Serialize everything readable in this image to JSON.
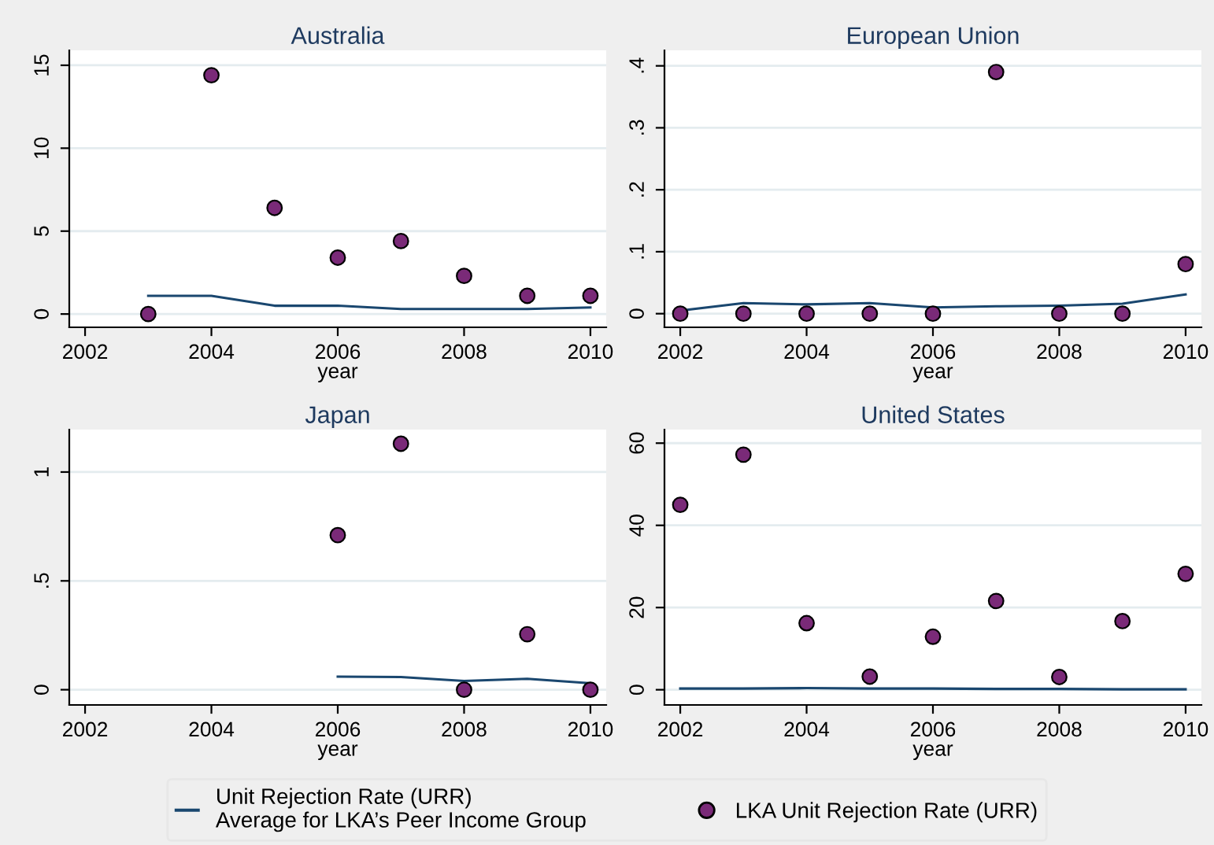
{
  "chart_data": [
    {
      "type": "line",
      "title": "Australia",
      "xlabel": "year",
      "xlim": [
        2001.75,
        2010.25
      ],
      "xticks": [
        2002,
        2004,
        2006,
        2008,
        2010
      ],
      "ylim": [
        -0.8,
        15.9
      ],
      "yticks": [
        0,
        5,
        10,
        15
      ],
      "grid": "y",
      "legend": "bottom",
      "series": [
        {
          "name": "Unit Rejection Rate (URR)\nAverage for LKA’s Peer Income Group",
          "color": "#1a476f",
          "x": [
            2003,
            2004,
            2005,
            2006,
            2007,
            2008,
            2009,
            2010
          ],
          "values": [
            1.1,
            1.1,
            0.5,
            0.5,
            0.3,
            0.3,
            0.3,
            0.4
          ]
        },
        {
          "name": "LKA Unit Rejection Rate (URR)",
          "type": "scatter",
          "color": "#7a2a78",
          "marker": "circle",
          "x": [
            2003,
            2004,
            2005,
            2006,
            2007,
            2008,
            2009,
            2010
          ],
          "values": [
            0,
            14.4,
            6.4,
            3.4,
            4.4,
            2.3,
            1.1,
            1.1
          ]
        }
      ]
    },
    {
      "type": "line",
      "title": "European Union",
      "xlabel": "year",
      "xlim": [
        2001.75,
        2010.25
      ],
      "xticks": [
        2002,
        2004,
        2006,
        2008,
        2010
      ],
      "ylim": [
        -0.022,
        0.425
      ],
      "yticks": [
        {
          "value": 0,
          "label": "0"
        },
        {
          "value": 0.1,
          "label": ".1"
        },
        {
          "value": 0.2,
          "label": ".2"
        },
        {
          "value": 0.3,
          "label": ".3"
        },
        {
          "value": 0.4,
          "label": ".4"
        }
      ],
      "grid": "y",
      "series": [
        {
          "color": "#1a476f",
          "x": [
            2002,
            2003,
            2004,
            2005,
            2006,
            2007,
            2008,
            2009,
            2010
          ],
          "values": [
            0.005,
            0.017,
            0.015,
            0.017,
            0.01,
            0.012,
            0.013,
            0.016,
            0.031
          ]
        },
        {
          "type": "scatter",
          "color": "#7a2a78",
          "marker": "circle",
          "x": [
            2002,
            2003,
            2004,
            2005,
            2006,
            2007,
            2008,
            2009,
            2010
          ],
          "values": [
            0,
            0,
            0,
            0,
            0,
            0.39,
            0,
            0,
            0.08
          ]
        }
      ]
    },
    {
      "type": "line",
      "title": "Japan",
      "xlabel": "year",
      "xlim": [
        2001.75,
        2010.25
      ],
      "xticks": [
        2002,
        2004,
        2006,
        2008,
        2010
      ],
      "ylim": [
        -0.07,
        1.195
      ],
      "yticks": [
        {
          "value": 0,
          "label": "0"
        },
        {
          "value": 0.5,
          "label": ".5"
        },
        {
          "value": 1,
          "label": "1"
        }
      ],
      "grid": "y",
      "series": [
        {
          "color": "#1a476f",
          "x": [
            2006,
            2007,
            2008,
            2009,
            2010
          ],
          "values": [
            0.06,
            0.058,
            0.04,
            0.05,
            0.03
          ]
        },
        {
          "type": "scatter",
          "color": "#7a2a78",
          "marker": "circle",
          "x": [
            2006,
            2007,
            2008,
            2009,
            2010
          ],
          "values": [
            0.71,
            1.13,
            0,
            0.255,
            0
          ]
        }
      ]
    },
    {
      "type": "line",
      "title": "United States",
      "xlabel": "year",
      "xlim": [
        2001.75,
        2010.25
      ],
      "xticks": [
        2002,
        2004,
        2006,
        2008,
        2010
      ],
      "ylim": [
        -3.7,
        63.3
      ],
      "yticks": [
        0,
        20,
        40,
        60
      ],
      "grid": "y",
      "series": [
        {
          "color": "#1a476f",
          "x": [
            2002,
            2003,
            2004,
            2005,
            2006,
            2007,
            2008,
            2009,
            2010
          ],
          "values": [
            0.3,
            0.3,
            0.4,
            0.3,
            0.3,
            0.2,
            0.2,
            0.1,
            0.1
          ]
        },
        {
          "type": "scatter",
          "color": "#7a2a78",
          "marker": "circle",
          "x": [
            2002,
            2003,
            2004,
            2005,
            2006,
            2007,
            2008,
            2009,
            2010
          ],
          "values": [
            45,
            57.2,
            16.2,
            3.2,
            12.9,
            21.6,
            3.1,
            16.7,
            28.2
          ]
        }
      ]
    }
  ]
}
